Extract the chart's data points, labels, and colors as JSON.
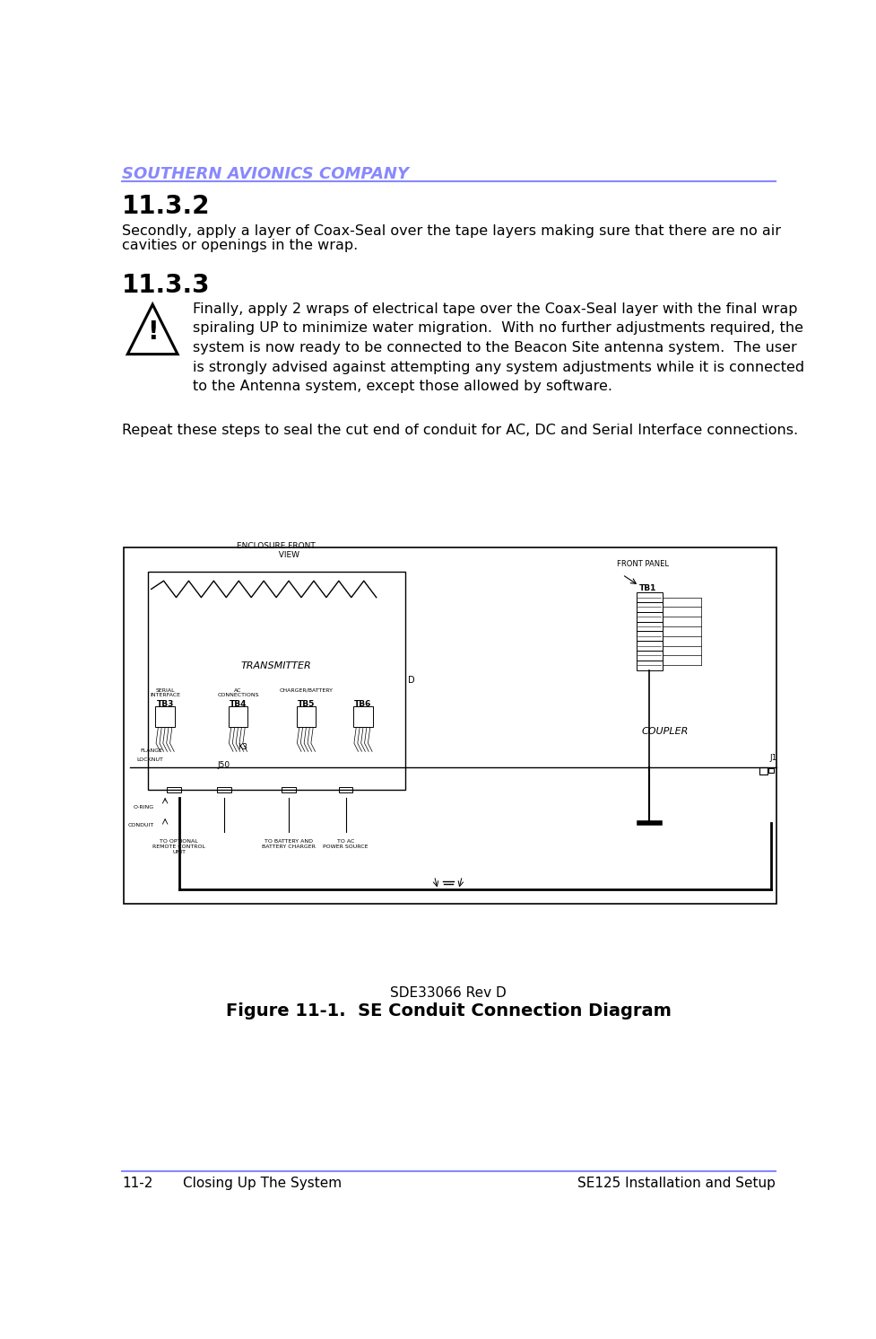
{
  "header_text": "SOUTHERN AVIONICS COMPANY",
  "header_color": "#8888ff",
  "header_line_color": "#8888ff",
  "footer_line_color": "#8888ff",
  "footer_left": "11-2",
  "footer_left2": "Closing Up The System",
  "footer_right": "SE125 Installation and Setup",
  "section_132_title": "11.3.2",
  "section_132_body_line1": "Secondly, apply a layer of Coax-Seal over the tape layers making sure that there are no air",
  "section_132_body_line2": "cavities or openings in the wrap.",
  "section_133_title": "11.3.3",
  "section_133_body": "Finally, apply 2 wraps of electrical tape over the Coax-Seal layer with the final wrap\nspiraling UP to minimize water migration.  With no further adjustments required, the\nsystem is now ready to be connected to the Beacon Site antenna system.  The user\nis strongly advised against attempting any system adjustments while it is connected\nto the Antenna system, except those allowed by software.",
  "repeat_text": "Repeat these steps to seal the cut end of conduit for AC, DC and Serial Interface connections.",
  "fig_caption1": "SDE33066 Rev D",
  "fig_caption2": "Figure 11-1.  SE Conduit Connection Diagram",
  "text_color": "#000000",
  "bg_color": "#ffffff",
  "body_fontsize": 11.5,
  "title_fontsize": 20,
  "header_fontsize": 13,
  "footer_fontsize": 11
}
